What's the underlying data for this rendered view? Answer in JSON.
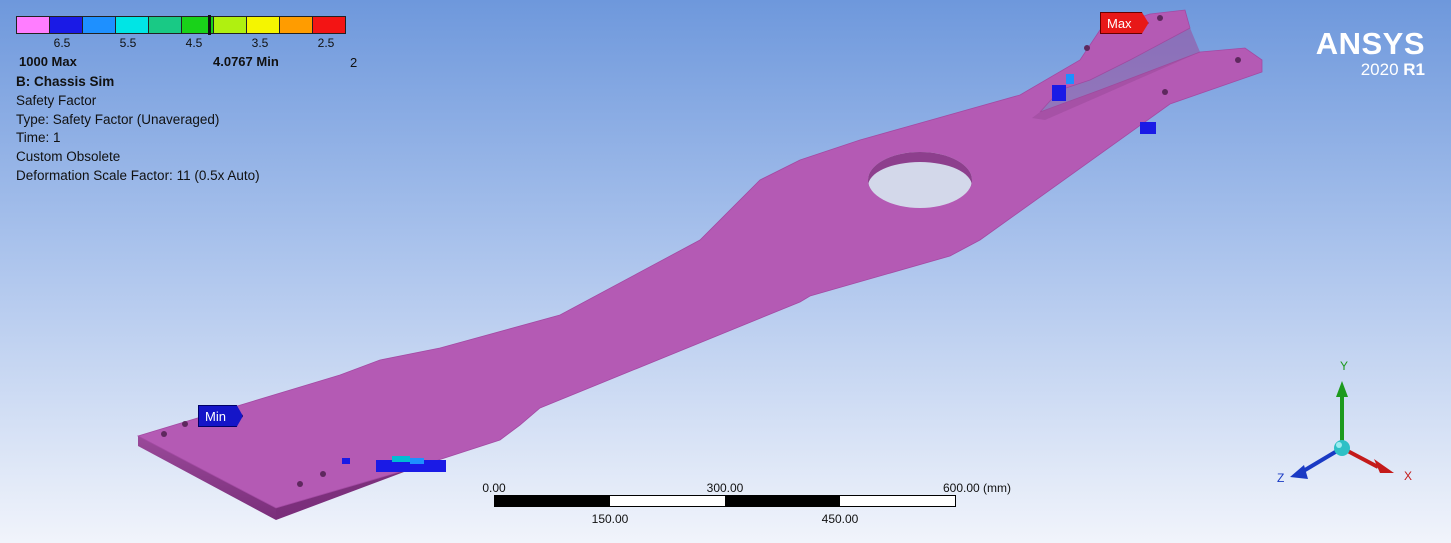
{
  "legend": {
    "swatch_colors": [
      "#ff7dff",
      "#1a1ae6",
      "#1e90ff",
      "#00e5e5",
      "#19c985",
      "#19d219",
      "#b0f010",
      "#f5f500",
      "#ff9c00",
      "#f31414"
    ],
    "tick_labels": [
      "6.5",
      "5.5",
      "4.5",
      "3.5",
      "2.5"
    ],
    "max_label": "1000 Max",
    "min_label": "4.0767 Min",
    "end_label": "2"
  },
  "info": {
    "title": "B: Chassis Sim",
    "lines": [
      "Safety Factor",
      "Type: Safety Factor (Unaveraged)",
      "Time: 1",
      "Custom Obsolete",
      "Deformation Scale Factor: 11 (0.5x Auto)"
    ]
  },
  "brand": {
    "name": "ANSYS",
    "version_year": "2020",
    "version_release": "R1"
  },
  "probes": {
    "max_label": "Max",
    "min_label": "Min"
  },
  "scale": {
    "top_labels": [
      "0.00",
      "300.00",
      "600.00 (mm)"
    ],
    "bottom_labels": [
      "150.00",
      "450.00"
    ]
  },
  "triad": {
    "x_label": "X",
    "y_label": "Y",
    "z_label": "Z"
  },
  "colors": {
    "part": "#b45ab4",
    "part_side": "#8a3b8a",
    "x_axis": "#c41a1a",
    "y_axis": "#1d9a1d",
    "z_axis": "#1a3ac4"
  }
}
